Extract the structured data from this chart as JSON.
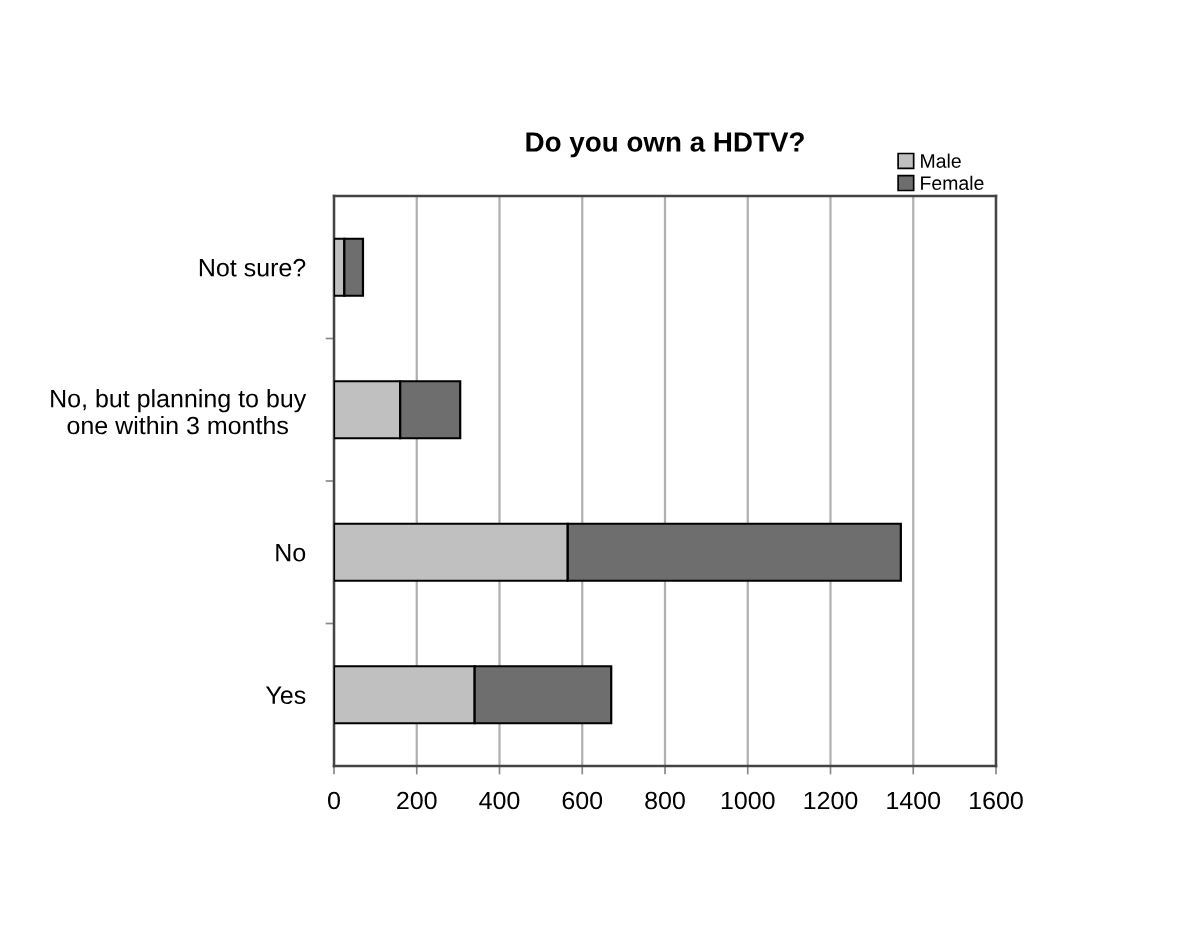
{
  "chart_data": {
    "type": "bar",
    "orientation": "horizontal",
    "stacked": true,
    "title": "Do you own a HDTV?",
    "categories": [
      "Not sure?",
      "No, but planning to buy\none within 3 months",
      "No",
      "Yes"
    ],
    "series": [
      {
        "name": "Male",
        "color": "#c0c0c0",
        "values": [
          25,
          160,
          565,
          340
        ]
      },
      {
        "name": "Female",
        "color": "#6e6e6e",
        "values": [
          45,
          145,
          805,
          330
        ]
      }
    ],
    "xlim": [
      0,
      1600
    ],
    "xticks": [
      0,
      200,
      400,
      600,
      800,
      1000,
      1200,
      1400,
      1600
    ],
    "grid": "x",
    "legend": "top right"
  }
}
